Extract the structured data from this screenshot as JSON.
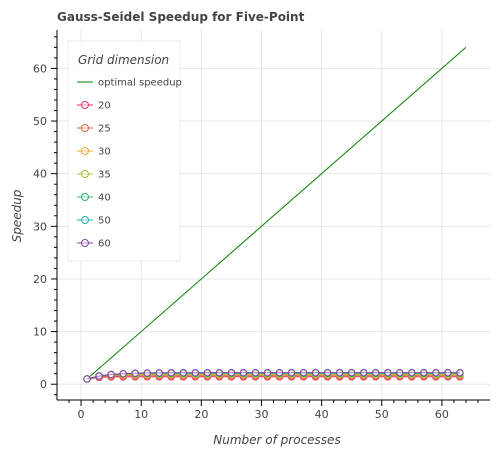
{
  "chart_data": {
    "type": "line",
    "title": "Gauss-Seidel Speedup for Five-Point",
    "xlabel": "Number of processes",
    "ylabel": "Speedup",
    "xlim": [
      -4,
      68
    ],
    "ylim": [
      -3.0,
      67.3
    ],
    "xticks": [
      0,
      10,
      20,
      30,
      40,
      50,
      60
    ],
    "yticks": [
      0,
      10,
      20,
      30,
      40,
      50,
      60
    ],
    "grid": true,
    "legend": {
      "title": "Grid dimension",
      "placement": "top-left"
    },
    "series": [
      {
        "name": "optimal speedup",
        "color": "#008000",
        "style": "line",
        "x": [
          1,
          64
        ],
        "y": [
          1,
          64
        ]
      },
      {
        "name": "20",
        "color": "#e8336e",
        "style": "line-marker",
        "plateau": 1.4,
        "k": 0.6
      },
      {
        "name": "25",
        "color": "#e0603a",
        "style": "line-marker",
        "plateau": 1.6,
        "k": 0.55
      },
      {
        "name": "30",
        "color": "#e8a630",
        "style": "line-marker",
        "plateau": 1.8,
        "k": 0.5
      },
      {
        "name": "35",
        "color": "#a8c030",
        "style": "line-marker",
        "plateau": 1.95,
        "k": 0.45
      },
      {
        "name": "40",
        "color": "#2cb86e",
        "style": "line-marker",
        "plateau": 2.05,
        "k": 0.4
      },
      {
        "name": "50",
        "color": "#23b0b0",
        "style": "line-marker",
        "plateau": 2.15,
        "k": 0.35
      },
      {
        "name": "60",
        "color": "#8a3fa0",
        "style": "line-marker",
        "plateau": 2.2,
        "k": 0.3
      }
    ]
  }
}
